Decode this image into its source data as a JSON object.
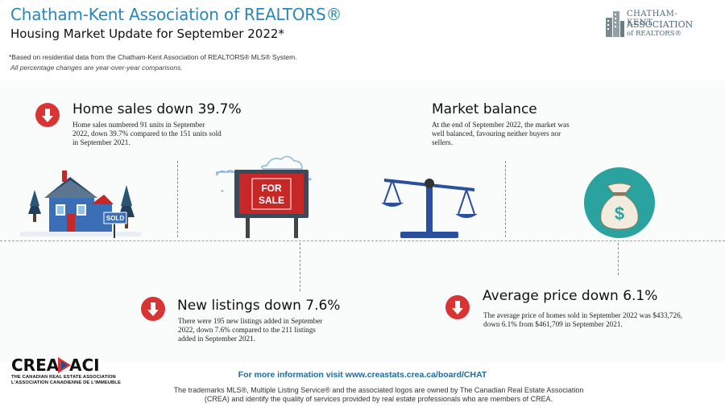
{
  "header": {
    "title": "Chatham-Kent Association of REALTORS®",
    "subtitle": "Housing Market Update for September 2022*",
    "note_data": "*Based on residential data from the Chatham-Kent Association of REALTORS® MLS® System.",
    "note_yoy": "All percentage changes are year-over-year comparisons."
  },
  "logo_ck": {
    "line1": "CHATHAM-KENT",
    "line2": "ASSOCIATION",
    "line3": "of REALTORS®"
  },
  "home_sales": {
    "heading": "Home sales down 39.7%",
    "line1": "Home sales numbered 91 units in September",
    "line2": "2022, down 39.7% compared to the 151 units sold",
    "line3": "in September 2021.",
    "sign_text": "SOLD"
  },
  "market_balance": {
    "heading": "Market balance",
    "line1": "At the end of September 2022, the market was",
    "line2": "well balanced, favouring neither buyers nor",
    "line3": "sellers."
  },
  "new_listings": {
    "heading": "New listings down 7.6%",
    "line1": "There were 195 new listings added in September",
    "line2": "2022, down 7.6% compared to the 211 listings",
    "line3": "added in September 2021.",
    "sign_line1": "FOR",
    "sign_line2": "SALE"
  },
  "avg_price": {
    "heading": "Average price down 6.1%",
    "line1": "The average price of homes sold in September 2022 was $433,726,",
    "line2": "down 6.1% from $461,709 in September 2021.",
    "symbol": "$"
  },
  "footer": {
    "link_text": "For more information visit www.creastats.crea.ca/board/CHAT",
    "tm_line1": "The trademarks MLS®, Multiple Listing Service® and the associated logos are owned by The Canadian Real Estate Association",
    "tm_line2": "(CREA) and identify the quality of services provided by real estate professionals who are members of CREA."
  },
  "crea_logo": {
    "left_word": "CREA",
    "right_word": "ACI",
    "name_en": "THE CANADIAN REAL ESTATE ASSOCIATION",
    "name_fr": "L'ASSOCIATION CANADIENNE DE L'IMMEUBLE"
  },
  "colors": {
    "title_blue": "#2a86b8",
    "down_red": "#d93434",
    "scale_blue": "#2a4f9e",
    "bag_teal": "#2aa3a0",
    "house_blue": "#3a6fb8",
    "sign_red": "#c62828"
  },
  "icons": [
    "down-arrow-icon",
    "house-sold-icon",
    "for-sale-sign-icon",
    "balance-scale-icon",
    "money-bag-icon",
    "crea-maple-leaf-icon",
    "ck-building-icon"
  ]
}
